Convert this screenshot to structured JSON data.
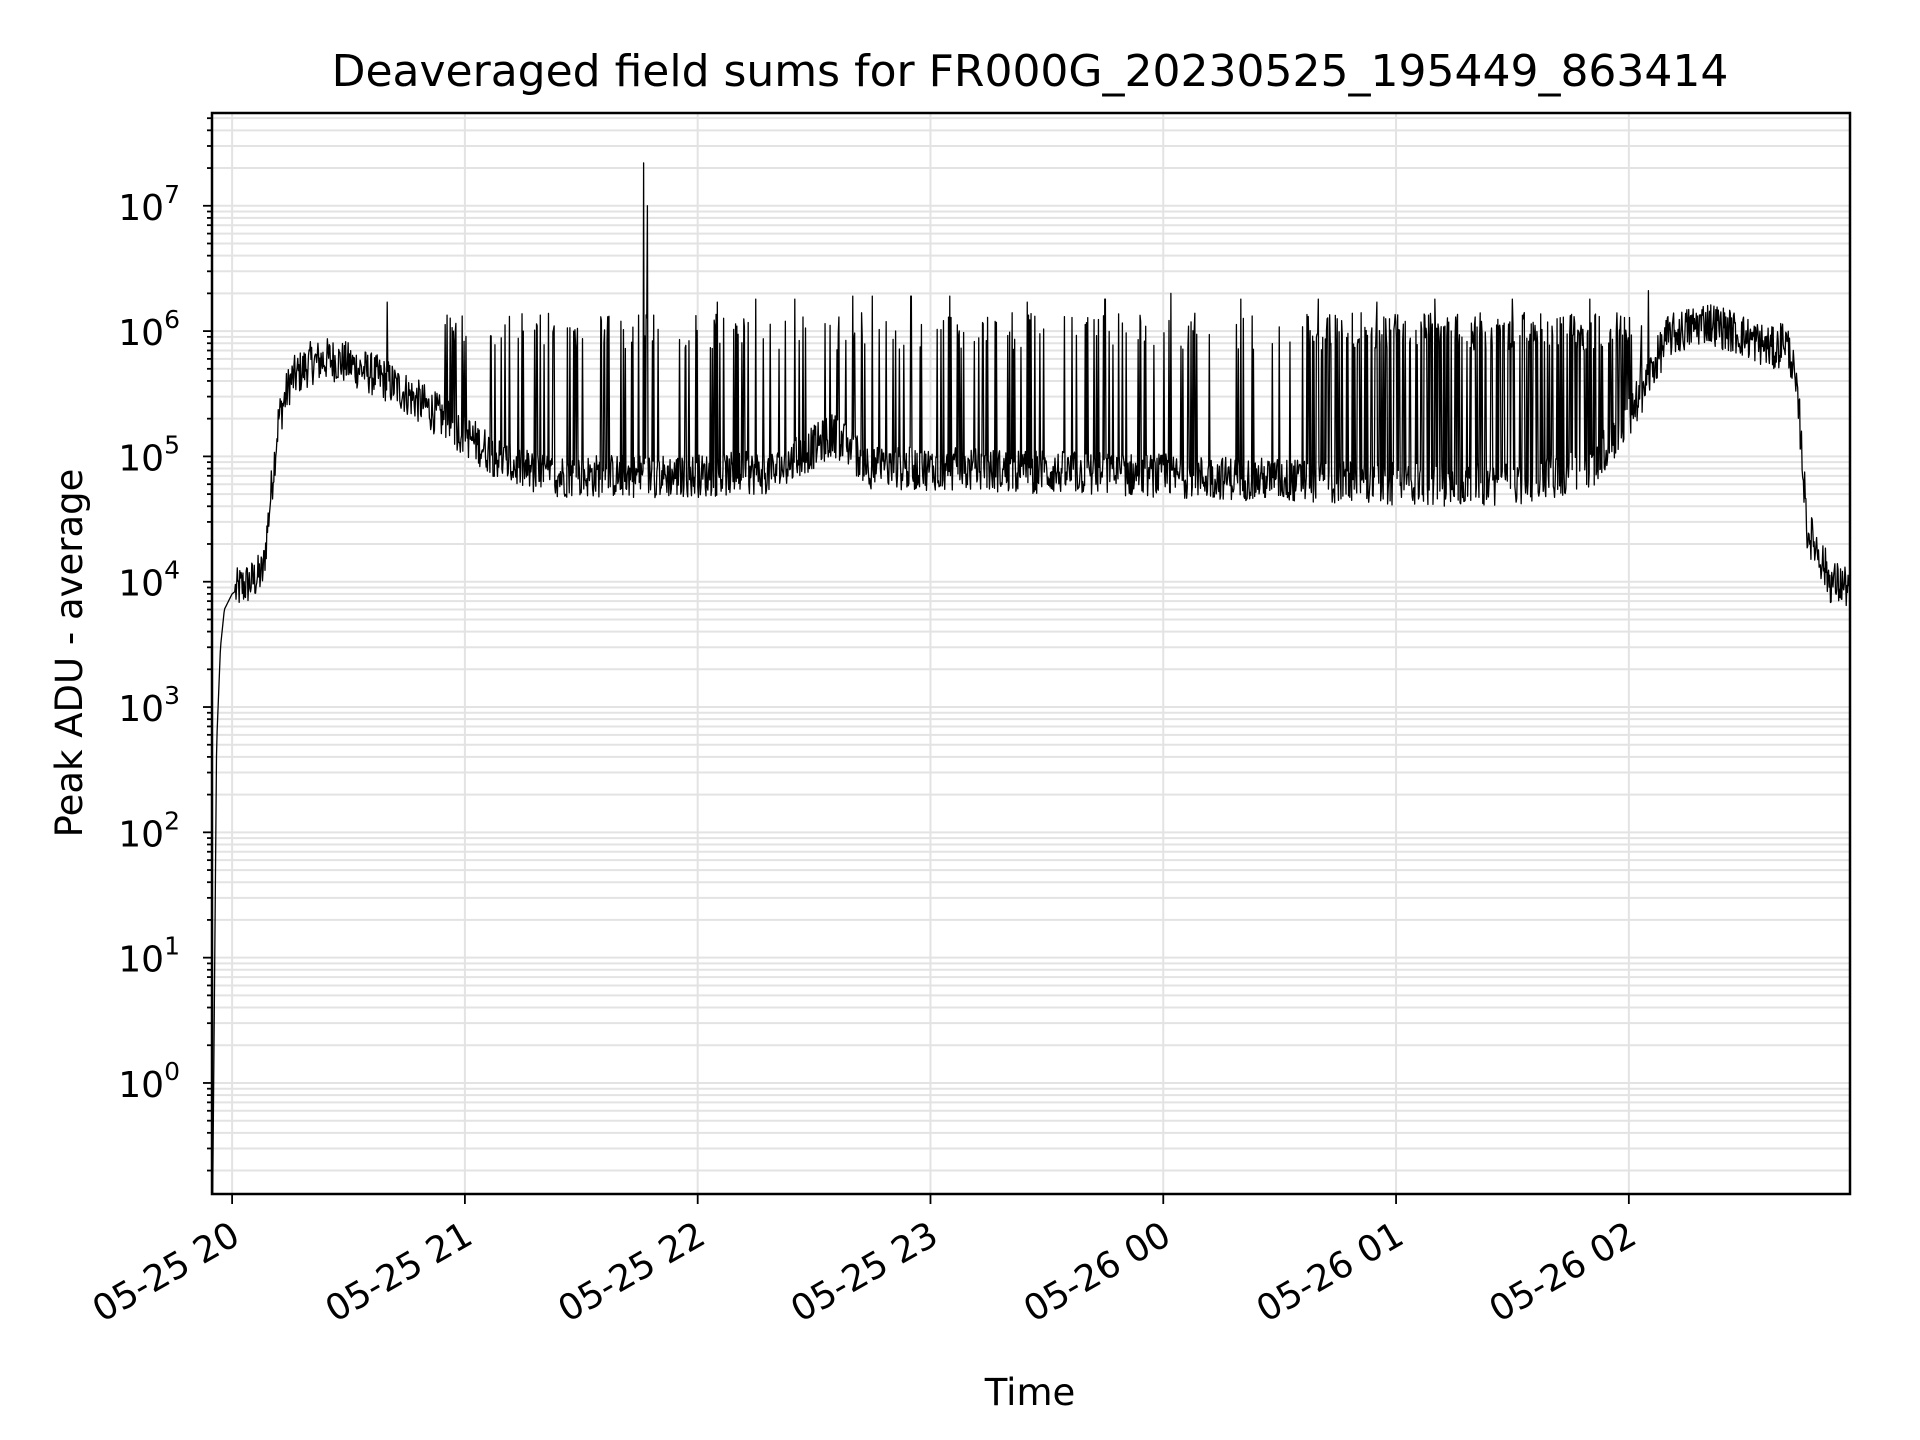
{
  "chart_data": {
    "type": "line",
    "title": "Deaveraged field sums for FR000G_20230525_195449_863414",
    "xlabel": "Time",
    "ylabel": "Peak ADU - average",
    "yscale": "log",
    "ylim": [
      0.13,
      55000000
    ],
    "xlim": [
      "2023-05-25 19:54:49",
      "2023-05-26 02:57:00"
    ],
    "grid": true,
    "legend": "none",
    "line_color": "#000000",
    "x_ticks": [
      "05-25 20",
      "05-25 21",
      "05-25 22",
      "05-25 23",
      "05-26 00",
      "05-26 01",
      "05-26 02"
    ],
    "y_ticks": [
      {
        "base": "10",
        "exp": "0"
      },
      {
        "base": "10",
        "exp": "1"
      },
      {
        "base": "10",
        "exp": "2"
      },
      {
        "base": "10",
        "exp": "3"
      },
      {
        "base": "10",
        "exp": "4"
      },
      {
        "base": "10",
        "exp": "5"
      },
      {
        "base": "10",
        "exp": "6"
      },
      {
        "base": "10",
        "exp": "7"
      }
    ],
    "series": [
      {
        "baseline": {
          "x": [
            "2023-05-25 19:55:00",
            "2023-05-25 19:56:00",
            "2023-05-25 19:57:00",
            "2023-05-25 19:58:00",
            "2023-05-25 20:00:00",
            "2023-05-25 20:02:00",
            "2023-05-25 20:05:00",
            "2023-05-25 20:08:00",
            "2023-05-25 20:10:00",
            "2023-05-25 20:12:00",
            "2023-05-25 20:15:00",
            "2023-05-25 20:20:00",
            "2023-05-25 20:25:00",
            "2023-05-25 20:30:00",
            "2023-05-25 20:40:00",
            "2023-05-25 20:50:00",
            "2023-05-25 21:00:00",
            "2023-05-25 21:10:00",
            "2023-05-25 21:20:00",
            "2023-05-25 21:30:00",
            "2023-05-25 21:45:00",
            "2023-05-25 22:00:00",
            "2023-05-25 22:20:00",
            "2023-05-25 22:35:00",
            "2023-05-25 22:45:00",
            "2023-05-25 23:00:00",
            "2023-05-25 23:30:00",
            "2023-05-26 00:00:00",
            "2023-05-26 00:30:00",
            "2023-05-26 00:55:00",
            "2023-05-26 01:10:00",
            "2023-05-26 01:30:00",
            "2023-05-26 01:50:00",
            "2023-05-26 02:00:00",
            "2023-05-26 02:10:00",
            "2023-05-26 02:20:00",
            "2023-05-26 02:30:00",
            "2023-05-26 02:38:00",
            "2023-05-26 02:40:00",
            "2023-05-26 02:42:00",
            "2023-05-26 02:44:00",
            "2023-05-26 02:46:00",
            "2023-05-26 02:48:00",
            "2023-05-26 02:52:00",
            "2023-05-26 02:57:00"
          ],
          "y": [
            0.13,
            500,
            3000,
            6000,
            8000,
            9000,
            10000,
            12000,
            50000,
            200000,
            400000,
            550000,
            600000,
            550000,
            400000,
            250000,
            150000,
            90000,
            70000,
            70000,
            70000,
            70000,
            75000,
            150000,
            80000,
            80000,
            75000,
            70000,
            65000,
            60000,
            60000,
            60000,
            80000,
            200000,
            900000,
            1200000,
            900000,
            700000,
            900000,
            600000,
            200000,
            25000,
            20000,
            10000,
            9000
          ]
        },
        "spikes": {
          "x": [
            "2023-05-25 20:40:00",
            "2023-05-25 20:57:00",
            "2023-05-25 21:15:00",
            "2023-05-25 21:23:00",
            "2023-05-25 21:28:00",
            "2023-05-25 21:35:00",
            "2023-05-25 21:46:00",
            "2023-05-25 21:47:00",
            "2023-05-25 22:05:00",
            "2023-05-25 22:15:00",
            "2023-05-25 22:25:00",
            "2023-05-25 22:40:00",
            "2023-05-25 22:45:00",
            "2023-05-25 22:55:00",
            "2023-05-25 23:05:00",
            "2023-05-25 23:25:00",
            "2023-05-25 23:45:00",
            "2023-05-26 00:02:00",
            "2023-05-26 00:20:00",
            "2023-05-26 00:40:00",
            "2023-05-26 00:55:00",
            "2023-05-26 01:10:00",
            "2023-05-26 01:30:00",
            "2023-05-26 01:50:00",
            "2023-05-26 02:05:00"
          ],
          "y": [
            1700000,
            1000000,
            1000000,
            1100000,
            1000000,
            1300000,
            22000000,
            10000000,
            1700000,
            1800000,
            1800000,
            1900000,
            1900000,
            1900000,
            1900000,
            1700000,
            1800000,
            2000000,
            1800000,
            1800000,
            1700000,
            1800000,
            1800000,
            1800000,
            2100000
          ]
        }
      }
    ]
  }
}
